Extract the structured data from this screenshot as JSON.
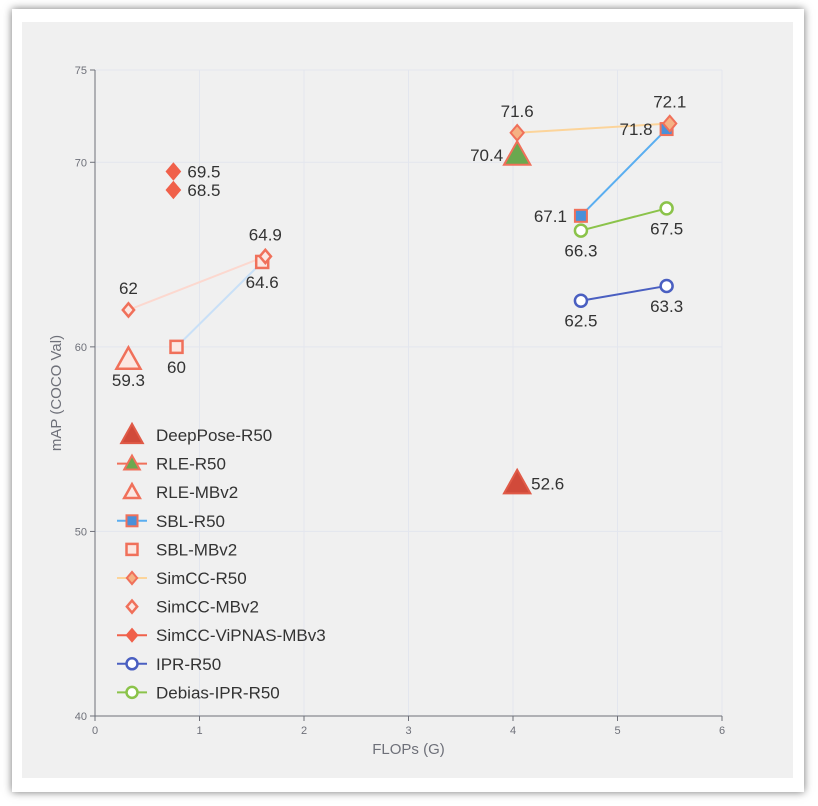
{
  "chart_data": {
    "type": "scatter",
    "xlabel": "FLOPs (G)",
    "ylabel": "mAP (COCO Val)",
    "xlim": [
      0,
      6
    ],
    "ylim": [
      40,
      75
    ],
    "xticks": [
      "0",
      "1",
      "2",
      "3",
      "4",
      "5",
      "6"
    ],
    "yticks": [
      "40",
      "50",
      "60",
      "70",
      "75"
    ],
    "grid": true,
    "legend_position": "bottom-left",
    "series": [
      {
        "name": "DeepPose-R50",
        "marker": "triangle",
        "fill": "#d14a3a",
        "stroke": "#e05a47",
        "line": false,
        "points": [
          {
            "x": 4.04,
            "y": 52.6,
            "label": "52.6",
            "pos": "right"
          }
        ]
      },
      {
        "name": "RLE-R50",
        "marker": "triangle",
        "fill": "#6aa84f",
        "stroke": "#f0705a",
        "line": false,
        "points": [
          {
            "x": 4.04,
            "y": 70.4,
            "label": "70.4",
            "pos": "left"
          }
        ]
      },
      {
        "name": "RLE-MBv2",
        "marker": "triangle-open",
        "fill": "#fbe7e2",
        "stroke": "#f0705a",
        "line": false,
        "points": [
          {
            "x": 0.32,
            "y": 59.3,
            "label": "59.3",
            "pos": "bottom"
          }
        ]
      },
      {
        "name": "SBL-R50",
        "marker": "square",
        "fill": "#4a90d9",
        "stroke": "#f0705a",
        "line": true,
        "color": "#5aaef0",
        "points": [
          {
            "x": 4.65,
            "y": 67.1,
            "label": "67.1",
            "pos": "left"
          },
          {
            "x": 5.47,
            "y": 71.8,
            "label": "71.8",
            "pos": "left"
          }
        ]
      },
      {
        "name": "SBL-MBv2",
        "marker": "square-open",
        "fill": "#fbe7e2",
        "stroke": "#f0705a",
        "line": true,
        "color": "#c9e0f7",
        "points": [
          {
            "x": 0.78,
            "y": 60.0,
            "label": "60",
            "pos": "bottom"
          },
          {
            "x": 1.6,
            "y": 64.6,
            "label": "64.6",
            "pos": "bottom"
          }
        ]
      },
      {
        "name": "SimCC-R50",
        "marker": "diamond",
        "fill": "#f5b183",
        "stroke": "#f0705a",
        "line": true,
        "color": "#fcd49a",
        "points": [
          {
            "x": 4.04,
            "y": 71.6,
            "label": "71.6",
            "pos": "top"
          },
          {
            "x": 5.5,
            "y": 72.1,
            "label": "72.1",
            "pos": "top"
          }
        ]
      },
      {
        "name": "SimCC-MBv2",
        "marker": "diamond-open",
        "fill": "#fbe7e2",
        "stroke": "#f0705a",
        "line": true,
        "color": "#fcd8cf",
        "points": [
          {
            "x": 0.32,
            "y": 62.0,
            "label": "62",
            "pos": "top"
          },
          {
            "x": 1.63,
            "y": 64.9,
            "label": "64.9",
            "pos": "top"
          }
        ]
      },
      {
        "name": "SimCC-ViPNAS-MBv3",
        "marker": "diamond",
        "fill": "#f0604a",
        "stroke": "#f0604a",
        "line": false,
        "points": [
          {
            "x": 0.75,
            "y": 69.5,
            "label": "69.5",
            "pos": "right"
          },
          {
            "x": 0.75,
            "y": 68.5,
            "label": "68.5",
            "pos": "right"
          }
        ]
      },
      {
        "name": "IPR-R50",
        "marker": "circle-open",
        "fill": "#ffffff",
        "stroke": "#4a5fc1",
        "line": true,
        "color": "#4a5fc1",
        "points": [
          {
            "x": 4.65,
            "y": 62.5,
            "label": "62.5",
            "pos": "bottom"
          },
          {
            "x": 5.47,
            "y": 63.3,
            "label": "63.3",
            "pos": "bottom"
          }
        ]
      },
      {
        "name": "Debias-IPR-R50",
        "marker": "circle-open",
        "fill": "#ffffff",
        "stroke": "#8bc34a",
        "line": true,
        "color": "#8bc34a",
        "points": [
          {
            "x": 4.65,
            "y": 66.3,
            "label": "66.3",
            "pos": "bottom"
          },
          {
            "x": 5.47,
            "y": 67.5,
            "label": "67.5",
            "pos": "bottom"
          }
        ]
      }
    ]
  }
}
